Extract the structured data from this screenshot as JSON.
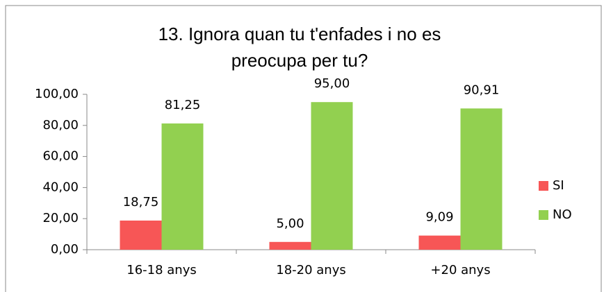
{
  "chart_data": {
    "type": "bar",
    "title": "13. Ignora quan tu t'enfades i no es preocupa per tu?",
    "categories": [
      "16-18 anys",
      "18-20 anys",
      "+20 anys"
    ],
    "series": [
      {
        "name": "SI",
        "color": "#f75656",
        "values": [
          18.75,
          5.0,
          9.09
        ],
        "value_labels": [
          "18,75",
          "5,00",
          "9,09"
        ]
      },
      {
        "name": "NO",
        "color": "#92d050",
        "values": [
          81.25,
          95.0,
          90.91
        ],
        "value_labels": [
          "81,25",
          "95,00",
          "90,91"
        ]
      }
    ],
    "ylim": [
      0,
      100
    ],
    "yticks": [
      {
        "value": 0,
        "label": "0,00"
      },
      {
        "value": 20,
        "label": "20,00"
      },
      {
        "value": 40,
        "label": "40,00"
      },
      {
        "value": 60,
        "label": "60,00"
      },
      {
        "value": 80,
        "label": "80,00"
      },
      {
        "value": 100,
        "label": "100,00"
      }
    ],
    "legend": "right"
  }
}
